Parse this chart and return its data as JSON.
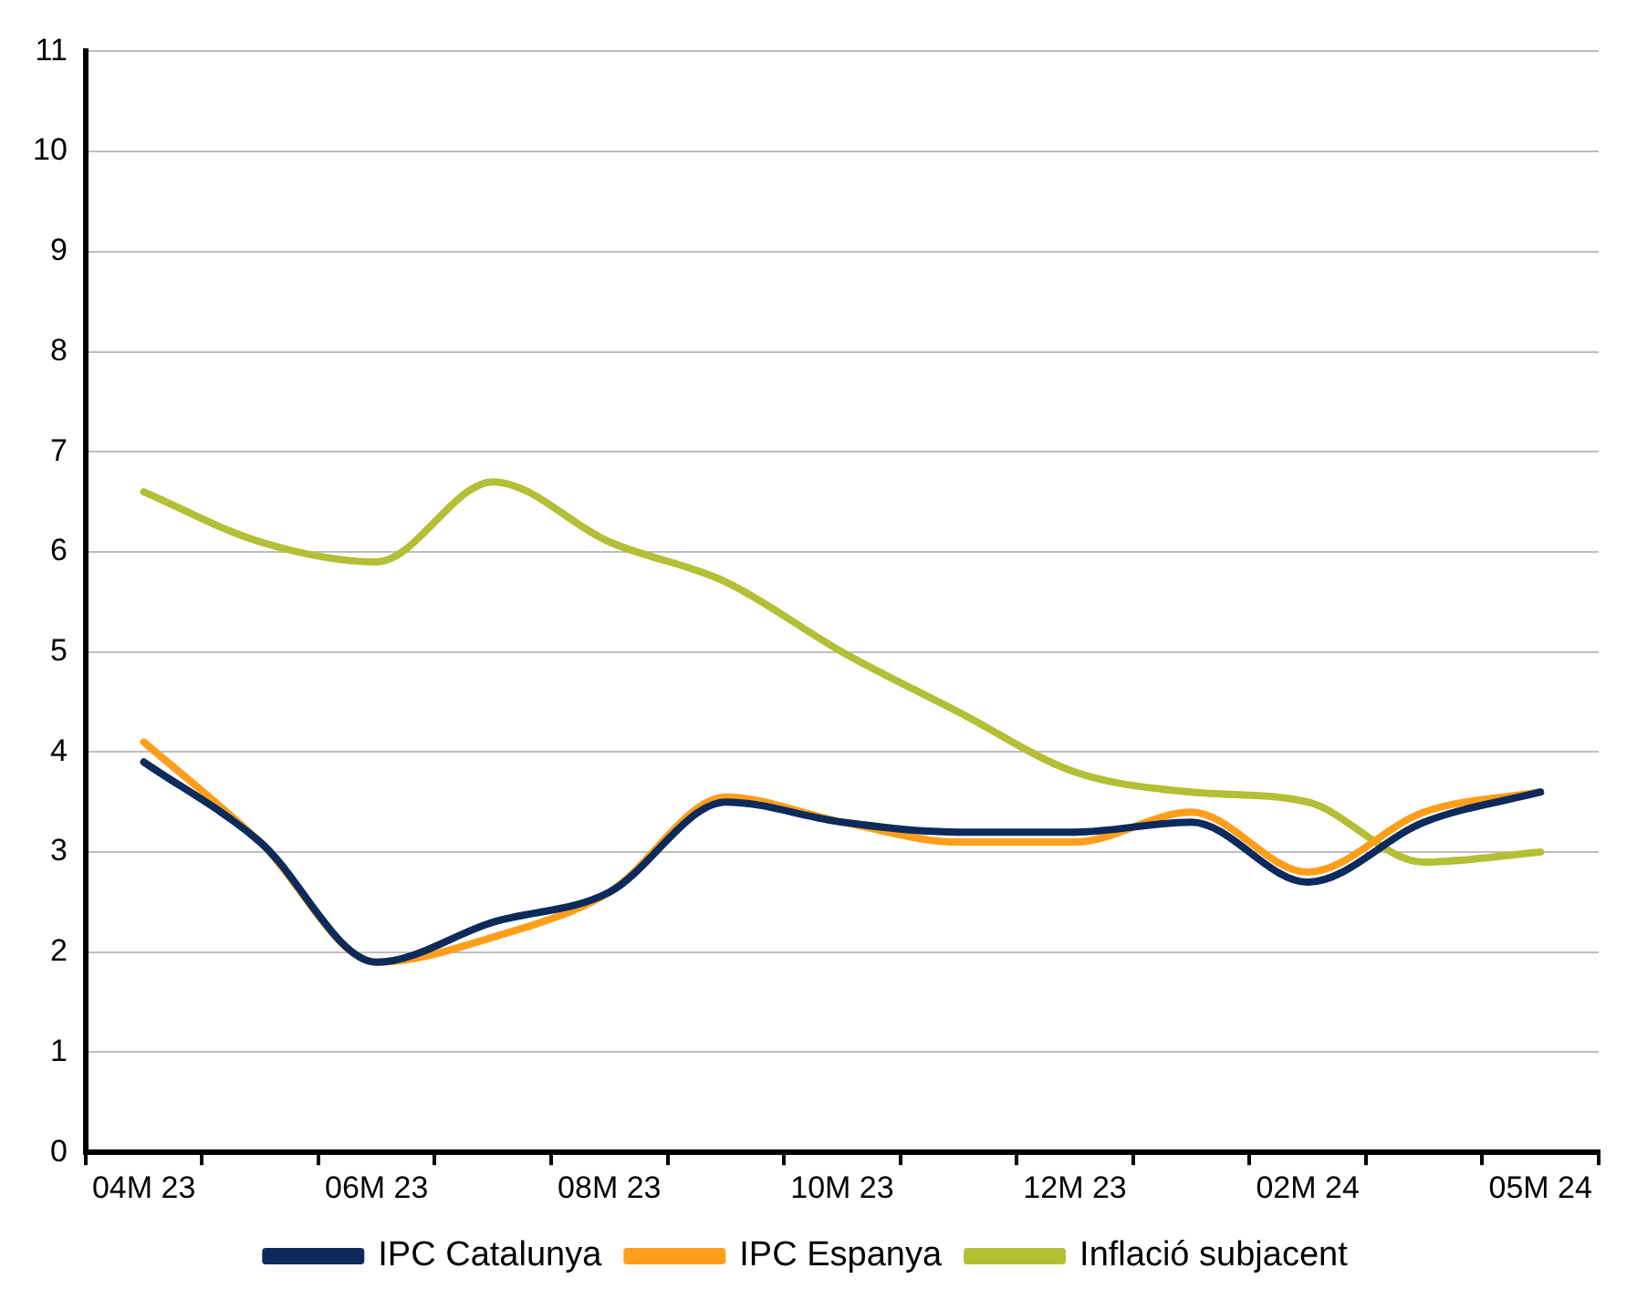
{
  "chart_data": {
    "type": "line",
    "categories": [
      "04M 23",
      null,
      "06M 23",
      null,
      "08M 23",
      null,
      "10M 23",
      null,
      "12M 23",
      null,
      "02M 24",
      null,
      "05M 24"
    ],
    "series": [
      {
        "name": "IPC Catalunya",
        "color": "#0d2a5c",
        "values": [
          3.9,
          3.1,
          1.9,
          2.3,
          2.6,
          3.5,
          3.3,
          3.2,
          3.2,
          3.3,
          2.7,
          3.3,
          3.6
        ]
      },
      {
        "name": "IPC Espanya",
        "color": "#ff9e1b",
        "values": [
          4.1,
          3.1,
          1.9,
          2.15,
          2.6,
          3.55,
          3.3,
          3.1,
          3.1,
          3.4,
          2.8,
          3.4,
          3.6
        ]
      },
      {
        "name": "Inflació subjacent",
        "color": "#b3bf34",
        "values": [
          6.6,
          6.1,
          5.9,
          6.7,
          6.1,
          5.7,
          5.0,
          4.4,
          3.8,
          3.6,
          3.5,
          2.9,
          3.0
        ]
      }
    ],
    "ylim": [
      0,
      11
    ],
    "yticks": [
      0,
      1,
      2,
      3,
      4,
      5,
      6,
      7,
      8,
      9,
      10,
      11
    ],
    "grid": "y",
    "legend": "bottom",
    "marker": "none",
    "line_style": "solid"
  }
}
